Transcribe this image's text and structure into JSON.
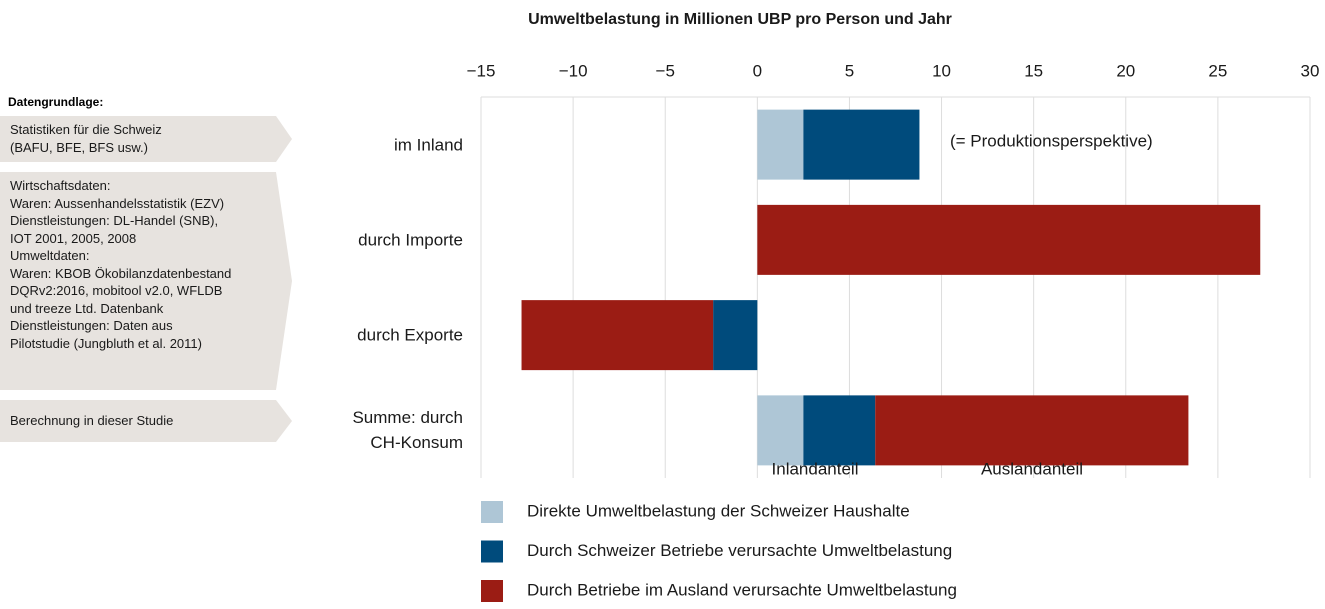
{
  "chart_data": {
    "type": "stacked-barh",
    "title": "Umweltbelastung in Millionen UBP pro Person und Jahr",
    "categories": [
      "im Inland",
      "durch Importe",
      "durch Exporte",
      "Summe: durch\nCH-Konsum"
    ],
    "series": [
      {
        "name": "Direkte Umweltbelastung der Schweizer Haushalte",
        "color": "#aec6d6",
        "values": [
          2.5,
          null,
          null,
          2.5
        ]
      },
      {
        "name": "Durch Schweizer Betriebe verursachte Umweltbelastung",
        "color": "#004b7c",
        "values": [
          6.3,
          null,
          -2.4,
          3.9
        ]
      },
      {
        "name": "Durch Betriebe im Ausland verursachte Umweltbelastung",
        "color": "#9b1c14",
        "values": [
          null,
          27.3,
          -10.4,
          17.0
        ]
      }
    ],
    "xlim": [
      -15,
      30
    ],
    "xticks": [
      {
        "value": -15,
        "label": "−15"
      },
      {
        "value": -10,
        "label": "−10"
      },
      {
        "value": -5,
        "label": "−5"
      },
      0,
      5,
      10,
      15,
      20,
      25,
      30
    ],
    "grid": true,
    "annotations": [
      "(= Produktionsperspektive)",
      "Inlandanteil",
      "Auslandanteil"
    ]
  },
  "side_panel": {
    "heading": "Datengrundlage:",
    "boxes": [
      "Statistiken für die Schweiz\n(BAFU, BFE, BFS usw.)",
      "Wirtschaftsdaten:\nWaren: Aussenhandelsstatistik (EZV)\nDienstleistungen: DL-Handel (SNB),\nIOT 2001, 2005, 2008\nUmweltdaten:\nWaren: KBOB Ökobilanzdatenbestand\nDQRv2:2016, mobitool v2.0, WFLDB\nund treeze Ltd. Datenbank\nDienstleistungen: Daten aus\nPilotstudie (Jungbluth et al. 2011)",
      "Berechnung in dieser Studie"
    ]
  }
}
